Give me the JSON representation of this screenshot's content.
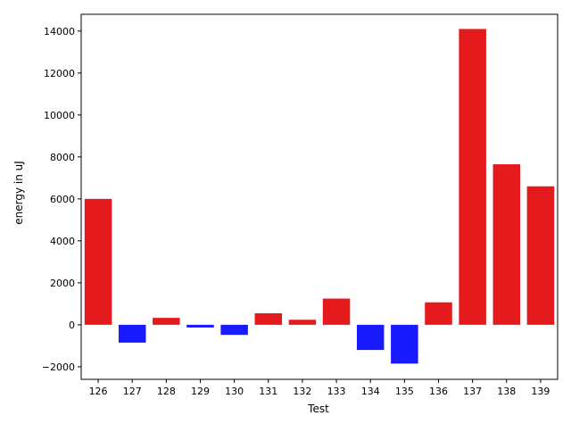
{
  "chart_data": {
    "type": "bar",
    "title": "",
    "xlabel": "Test",
    "ylabel": "energy in uJ",
    "categories": [
      "126",
      "127",
      "128",
      "129",
      "130",
      "131",
      "132",
      "133",
      "134",
      "135",
      "136",
      "137",
      "138",
      "139"
    ],
    "values": [
      6000,
      -850,
      330,
      -130,
      -480,
      550,
      240,
      1250,
      -1200,
      -1850,
      1070,
      14100,
      7650,
      6600
    ],
    "ylim": [
      -2600,
      14800
    ],
    "yticks": [
      -2000,
      0,
      2000,
      4000,
      6000,
      8000,
      10000,
      12000,
      14000
    ],
    "ytick_labels": [
      "−2000",
      "0",
      "2000",
      "4000",
      "6000",
      "8000",
      "10000",
      "12000",
      "14000"
    ],
    "grid": false,
    "colors": {
      "positive": "#e41a1c",
      "negative": "#1a1aff"
    }
  }
}
